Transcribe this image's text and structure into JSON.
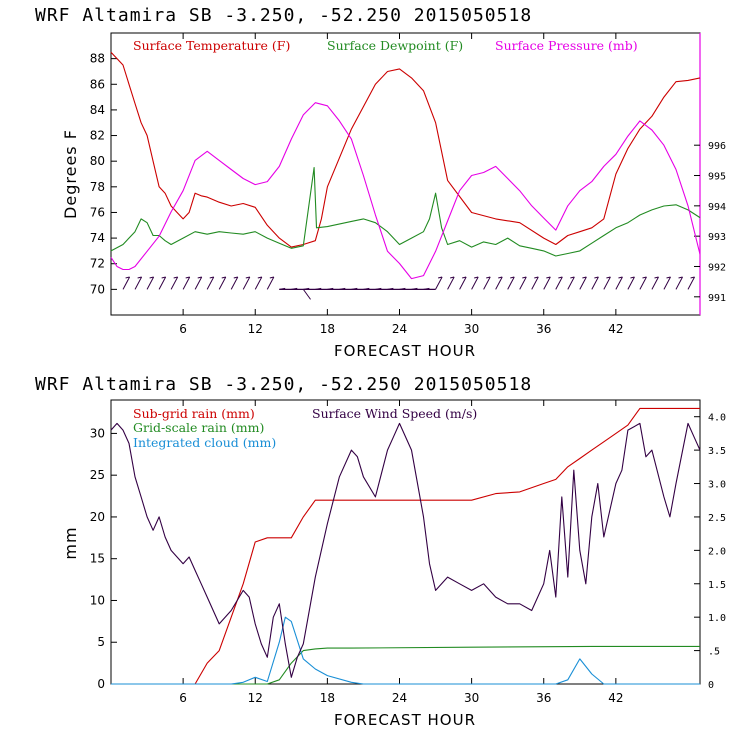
{
  "chart_data": [
    {
      "type": "line",
      "title": "WRF   Altamira  SB  -3.250, -52.250  2015050518",
      "xlabel": "FORECAST HOUR",
      "ylabel": "Degrees F",
      "xlim": [
        0,
        49
      ],
      "x_ticks": [
        6,
        12,
        18,
        24,
        30,
        36,
        42
      ],
      "ylim": [
        68,
        90
      ],
      "y_ticks": [
        70,
        72,
        74,
        76,
        78,
        80,
        82,
        84,
        86,
        88
      ],
      "y2lim": [
        990.4,
        999.7
      ],
      "y2_ticks": [
        991,
        992,
        993,
        994,
        995,
        996
      ],
      "legend": [
        "Surface Temperature (F)",
        "Surface Dewpoint (F)",
        "Surface Pressure (mb)"
      ],
      "colors": {
        "temperature": "#cc0000",
        "dewpoint": "#228b22",
        "pressure": "#e600e6",
        "wind": "#330044"
      },
      "series": [
        {
          "name": "Surface Temperature (F)",
          "axis": "left",
          "x": [
            0,
            0.5,
            1,
            1.5,
            2,
            2.5,
            3,
            3.5,
            4,
            4.5,
            5,
            5.5,
            6,
            6.5,
            7,
            7.5,
            8,
            9,
            10,
            11,
            12,
            13,
            14,
            15,
            16,
            17,
            17.5,
            18,
            20,
            22,
            23,
            24,
            25,
            26,
            27,
            28,
            30,
            32,
            34,
            36,
            37,
            38,
            39,
            40,
            41,
            42,
            43,
            44,
            45,
            46,
            47,
            48,
            49
          ],
          "values": [
            88.5,
            88,
            87.5,
            86,
            84.5,
            83,
            82,
            80,
            78,
            77.5,
            76.5,
            76,
            75.5,
            76,
            77.5,
            77.3,
            77.2,
            76.8,
            76.5,
            76.7,
            76.4,
            75,
            74,
            73.3,
            73.5,
            73.8,
            75.5,
            78,
            82.5,
            86,
            87,
            87.2,
            86.5,
            85.5,
            83,
            78.5,
            76,
            75.5,
            75.2,
            74,
            73.5,
            74.2,
            74.5,
            74.8,
            75.5,
            79,
            81,
            82.5,
            83.5,
            85,
            86.2,
            86.3,
            86.5
          ]
        },
        {
          "name": "Surface Dewpoint (F)",
          "axis": "left",
          "x": [
            0,
            1,
            2,
            2.5,
            3,
            3.5,
            4,
            4.5,
            5,
            6,
            7,
            8,
            9,
            10,
            11,
            12,
            13,
            14,
            15,
            16,
            16.9,
            17.1,
            18,
            20,
            21,
            22,
            23,
            24,
            25,
            26,
            26.5,
            27,
            27.5,
            28,
            29,
            30,
            31,
            32,
            33,
            34,
            35,
            36,
            37,
            38,
            39,
            40,
            41,
            42,
            43,
            44,
            45,
            46,
            47,
            48,
            49
          ],
          "values": [
            73,
            73.5,
            74.5,
            75.5,
            75.2,
            74.2,
            74.2,
            73.8,
            73.5,
            74,
            74.5,
            74.3,
            74.5,
            74.4,
            74.3,
            74.5,
            74,
            73.6,
            73.2,
            73.4,
            79.5,
            74.8,
            74.9,
            75.3,
            75.5,
            75.2,
            74.5,
            73.5,
            74,
            74.5,
            75.5,
            77.5,
            74.8,
            73.5,
            73.8,
            73.3,
            73.7,
            73.5,
            74,
            73.4,
            73.2,
            73,
            72.6,
            72.8,
            73,
            73.6,
            74.2,
            74.8,
            75.2,
            75.8,
            76.2,
            76.5,
            76.6,
            76.2,
            75.6
          ]
        },
        {
          "name": "Surface Pressure (mb)",
          "axis": "right",
          "x": [
            0,
            0.5,
            1,
            1.5,
            2,
            3,
            4,
            5,
            6,
            7,
            8,
            9,
            10,
            11,
            12,
            13,
            14,
            15,
            16,
            17,
            18,
            19,
            20,
            21,
            22,
            23,
            24,
            25,
            26,
            27,
            28,
            29,
            30,
            31,
            32,
            33,
            34,
            35,
            36,
            37,
            38,
            39,
            40,
            41,
            42,
            43,
            44,
            45,
            46,
            47,
            48,
            49
          ],
          "values": [
            992.3,
            992,
            991.9,
            991.9,
            992,
            992.5,
            993,
            993.8,
            994.5,
            995.5,
            995.8,
            995.5,
            995.2,
            994.9,
            994.7,
            994.8,
            995.3,
            996.2,
            997,
            997.4,
            997.3,
            996.8,
            996.2,
            995,
            993.7,
            992.5,
            992.1,
            991.6,
            991.7,
            992.5,
            993.5,
            994.5,
            995,
            995.1,
            995.3,
            994.9,
            994.5,
            994,
            993.6,
            993.2,
            994,
            994.5,
            994.8,
            995.3,
            995.7,
            996.3,
            996.8,
            996.5,
            996,
            995.2,
            994,
            992.4
          ]
        }
      ],
      "annotations": [
        "Wind barbs along the 70 F line"
      ]
    },
    {
      "type": "line",
      "title": "WRF   Altamira  SB  -3.250, -52.250  2015050518",
      "xlabel": "FORECAST HOUR",
      "ylabel": "mm",
      "xlim": [
        0,
        49
      ],
      "x_ticks": [
        6,
        12,
        18,
        24,
        30,
        36,
        42
      ],
      "ylim": [
        0,
        34
      ],
      "y_ticks": [
        0,
        5,
        10,
        15,
        20,
        25,
        30
      ],
      "y2lim": [
        0,
        4.25
      ],
      "y2_ticks": [
        "0",
        ".5",
        "1.0",
        "1.5",
        "2.0",
        "2.5",
        "3.0",
        "3.5",
        "4.0"
      ],
      "y2_tick_values": [
        0,
        0.5,
        1.0,
        1.5,
        2.0,
        2.5,
        3.0,
        3.5,
        4.0
      ],
      "legend": [
        "Sub-grid rain (mm)",
        "Surface Wind Speed (m/s)",
        "Grid-scale rain (mm)",
        "Integrated cloud (mm)"
      ],
      "colors": {
        "subgrid": "#cc0000",
        "wind": "#330044",
        "grid": "#228b22",
        "cloud": "#1a8fd6"
      },
      "series": [
        {
          "name": "Sub-grid rain (mm)",
          "axis": "left",
          "x": [
            0,
            7,
            8,
            9,
            10,
            11,
            12,
            13,
            14,
            15,
            16,
            17,
            18,
            20,
            24,
            30,
            32,
            34,
            36,
            37,
            38,
            39,
            40,
            41,
            42,
            43,
            44,
            45,
            48,
            49
          ],
          "values": [
            0,
            0,
            2.5,
            4,
            8,
            12,
            17,
            17.5,
            17.5,
            17.5,
            20,
            22,
            22,
            22,
            22,
            22,
            22.8,
            23,
            24,
            24.5,
            26,
            27,
            28,
            29,
            30,
            31,
            33,
            33,
            33,
            33
          ]
        },
        {
          "name": "Grid-scale rain (mm)",
          "axis": "left",
          "x": [
            0,
            13,
            14,
            15,
            16,
            17,
            18,
            20,
            30,
            40,
            45,
            49
          ],
          "values": [
            0,
            0,
            0.5,
            2.5,
            4,
            4.2,
            4.3,
            4.3,
            4.4,
            4.5,
            4.5,
            4.5
          ]
        },
        {
          "name": "Integrated cloud (mm)",
          "axis": "left",
          "x": [
            0,
            10,
            11,
            12,
            13,
            14,
            14.5,
            15,
            16,
            17,
            18,
            20,
            21,
            37,
            38,
            39,
            40,
            41,
            49
          ],
          "values": [
            0,
            0,
            0.2,
            0.8,
            0.3,
            5,
            8,
            7.5,
            3,
            1.8,
            1,
            0.2,
            0,
            0,
            0.5,
            3,
            1.2,
            0,
            0
          ]
        },
        {
          "name": "Surface Wind Speed (m/s)",
          "axis": "right",
          "x": [
            0,
            0.5,
            1,
            1.5,
            2,
            2.5,
            3,
            3.5,
            4,
            4.5,
            5,
            6,
            6.5,
            7,
            7.5,
            8,
            9,
            10,
            11,
            11.5,
            12,
            12.5,
            13,
            13.5,
            14,
            14.5,
            15,
            15.5,
            16,
            17,
            18,
            19,
            20,
            20.5,
            21,
            22,
            23,
            23.5,
            24,
            25,
            25.5,
            26,
            26.5,
            27,
            28,
            29,
            30,
            31,
            32,
            33,
            34,
            35,
            36,
            36.5,
            37,
            37.5,
            38,
            38.5,
            39,
            39.5,
            40,
            40.5,
            41,
            42,
            42.5,
            43,
            44,
            44.5,
            45,
            46,
            46.5,
            47,
            48,
            48.5,
            49
          ],
          "values": [
            3.8,
            3.9,
            3.8,
            3.6,
            3.1,
            2.8,
            2.5,
            2.3,
            2.5,
            2.2,
            2.0,
            1.8,
            1.9,
            1.7,
            1.5,
            1.3,
            0.9,
            1.1,
            1.4,
            1.3,
            0.9,
            0.6,
            0.4,
            1.0,
            1.2,
            0.6,
            0.1,
            0.4,
            0.6,
            1.6,
            2.4,
            3.1,
            3.5,
            3.4,
            3.1,
            2.8,
            3.5,
            3.7,
            3.9,
            3.5,
            3.0,
            2.5,
            1.8,
            1.4,
            1.6,
            1.5,
            1.4,
            1.5,
            1.3,
            1.2,
            1.2,
            1.1,
            1.5,
            2.0,
            1.3,
            2.8,
            1.6,
            3.2,
            2.0,
            1.5,
            2.5,
            3.0,
            2.2,
            3.0,
            3.2,
            3.8,
            3.9,
            3.4,
            3.5,
            2.8,
            2.5,
            3.0,
            3.9,
            3.7,
            3.5
          ]
        }
      ]
    }
  ]
}
